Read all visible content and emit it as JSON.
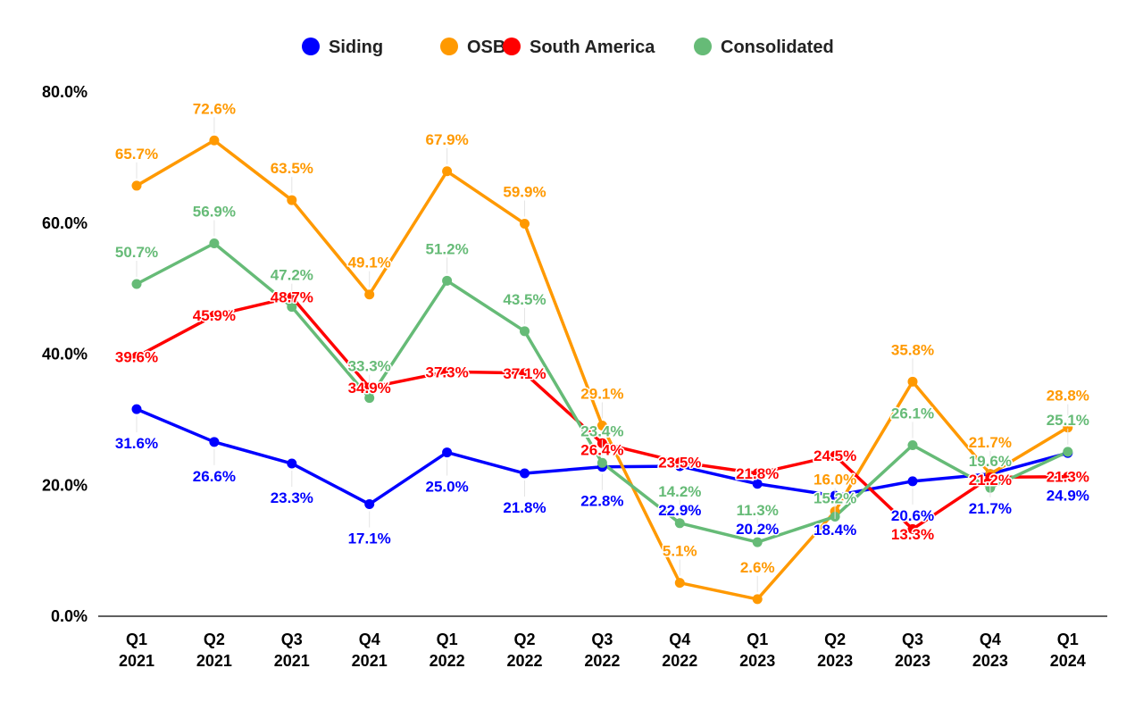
{
  "chart_data": {
    "type": "line",
    "categories": [
      "Q1\n2021",
      "Q2\n2021",
      "Q3\n2021",
      "Q4\n2021",
      "Q1\n2022",
      "Q2\n2022",
      "Q3\n2022",
      "Q4\n2022",
      "Q1\n2023",
      "Q2\n2023",
      "Q3\n2023",
      "Q4\n2023",
      "Q1\n2024"
    ],
    "ylim": [
      0,
      80
    ],
    "yticks": [
      "0.0%",
      "20.0%",
      "40.0%",
      "60.0%",
      "80.0%"
    ],
    "legend_position": "top",
    "grid": false,
    "series": [
      {
        "name": "Siding",
        "color": "#0000ff",
        "values": [
          31.6,
          26.6,
          23.3,
          17.1,
          25.0,
          21.8,
          22.8,
          22.9,
          20.2,
          18.4,
          20.6,
          21.7,
          24.9
        ]
      },
      {
        "name": "OSB",
        "color": "#ff9900",
        "values": [
          65.7,
          72.6,
          63.5,
          49.1,
          67.9,
          59.9,
          29.1,
          5.1,
          2.6,
          16.0,
          35.8,
          21.7,
          28.8
        ]
      },
      {
        "name": "South America",
        "color": "#ff0000",
        "values": [
          39.6,
          45.9,
          48.7,
          34.9,
          37.3,
          37.1,
          26.4,
          23.5,
          21.8,
          24.5,
          13.3,
          21.2,
          21.3
        ]
      },
      {
        "name": "Consolidated",
        "color": "#66bb77",
        "values": [
          50.7,
          56.9,
          47.2,
          33.3,
          51.2,
          43.5,
          23.4,
          14.2,
          11.3,
          15.2,
          26.1,
          19.6,
          25.1
        ]
      }
    ]
  }
}
